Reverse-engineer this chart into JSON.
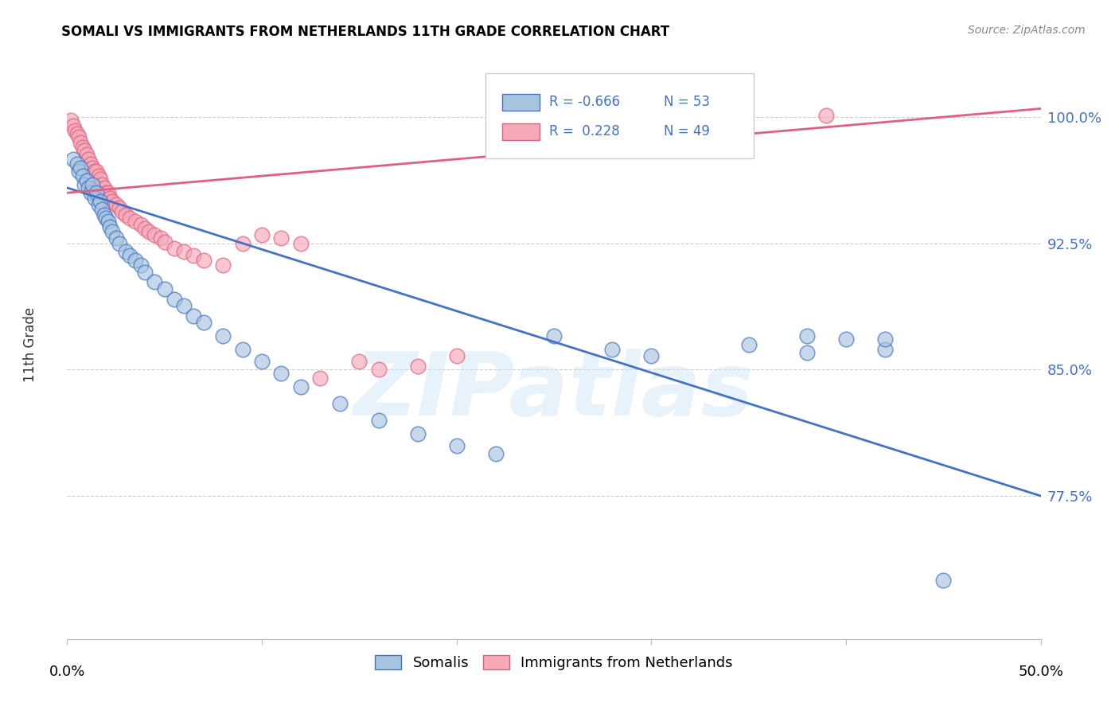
{
  "title": "SOMALI VS IMMIGRANTS FROM NETHERLANDS 11TH GRADE CORRELATION CHART",
  "source": "Source: ZipAtlas.com",
  "ylabel": "11th Grade",
  "ytick_labels": [
    "77.5%",
    "85.0%",
    "92.5%",
    "100.0%"
  ],
  "ytick_values": [
    0.775,
    0.85,
    0.925,
    1.0
  ],
  "xlim": [
    0.0,
    0.5
  ],
  "ylim": [
    0.69,
    1.04
  ],
  "blue_color": "#A8C4E0",
  "pink_color": "#F4A8B8",
  "blue_line_color": "#4472C4",
  "pink_line_color": "#E06080",
  "watermark": "ZIPatlas",
  "blue_line_x0": 0.0,
  "blue_line_y0": 0.958,
  "blue_line_x1": 0.5,
  "blue_line_y1": 0.775,
  "pink_line_x0": 0.0,
  "pink_line_y0": 0.955,
  "pink_line_x1": 0.5,
  "pink_line_y1": 1.005,
  "somalis_x": [
    0.003,
    0.005,
    0.006,
    0.007,
    0.008,
    0.009,
    0.01,
    0.011,
    0.012,
    0.013,
    0.014,
    0.015,
    0.016,
    0.017,
    0.018,
    0.019,
    0.02,
    0.021,
    0.022,
    0.023,
    0.025,
    0.027,
    0.03,
    0.032,
    0.035,
    0.038,
    0.04,
    0.045,
    0.05,
    0.055,
    0.06,
    0.065,
    0.07,
    0.08,
    0.09,
    0.1,
    0.11,
    0.12,
    0.14,
    0.16,
    0.18,
    0.2,
    0.22,
    0.25,
    0.28,
    0.3,
    0.35,
    0.38,
    0.4,
    0.42,
    0.38,
    0.42,
    0.45
  ],
  "somalis_y": [
    0.975,
    0.972,
    0.968,
    0.97,
    0.965,
    0.96,
    0.962,
    0.958,
    0.955,
    0.96,
    0.952,
    0.955,
    0.948,
    0.95,
    0.945,
    0.942,
    0.94,
    0.938,
    0.935,
    0.932,
    0.928,
    0.925,
    0.92,
    0.918,
    0.915,
    0.912,
    0.908,
    0.902,
    0.898,
    0.892,
    0.888,
    0.882,
    0.878,
    0.87,
    0.862,
    0.855,
    0.848,
    0.84,
    0.83,
    0.82,
    0.812,
    0.805,
    0.8,
    0.87,
    0.862,
    0.858,
    0.865,
    0.86,
    0.868,
    0.862,
    0.87,
    0.868,
    0.725
  ],
  "netherlands_x": [
    0.002,
    0.003,
    0.004,
    0.005,
    0.006,
    0.007,
    0.008,
    0.009,
    0.01,
    0.011,
    0.012,
    0.013,
    0.014,
    0.015,
    0.016,
    0.017,
    0.018,
    0.019,
    0.02,
    0.021,
    0.022,
    0.023,
    0.025,
    0.027,
    0.028,
    0.03,
    0.032,
    0.035,
    0.038,
    0.04,
    0.042,
    0.045,
    0.048,
    0.05,
    0.055,
    0.06,
    0.065,
    0.07,
    0.08,
    0.09,
    0.1,
    0.11,
    0.12,
    0.13,
    0.15,
    0.16,
    0.18,
    0.2,
    0.39
  ],
  "netherlands_y": [
    0.998,
    0.995,
    0.992,
    0.99,
    0.988,
    0.985,
    0.982,
    0.98,
    0.978,
    0.975,
    0.972,
    0.97,
    0.968,
    0.968,
    0.965,
    0.963,
    0.96,
    0.958,
    0.955,
    0.955,
    0.952,
    0.95,
    0.948,
    0.946,
    0.944,
    0.942,
    0.94,
    0.938,
    0.936,
    0.934,
    0.932,
    0.93,
    0.928,
    0.926,
    0.922,
    0.92,
    0.918,
    0.915,
    0.912,
    0.925,
    0.93,
    0.928,
    0.925,
    0.845,
    0.855,
    0.85,
    0.852,
    0.858,
    1.001
  ]
}
